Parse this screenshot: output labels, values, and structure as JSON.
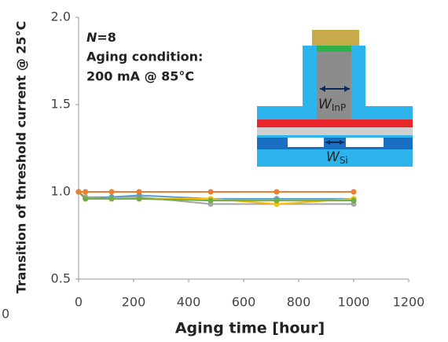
{
  "chart_data": {
    "type": "line",
    "x_label": "Aging time [hour]",
    "y_label": "Transition of threshold current @ 25°C",
    "annotations": {
      "n_prefix": "N",
      "n_value": "=8",
      "condition_title": "Aging condition:",
      "condition": "200 mA @ 85°C",
      "w_inp": {
        "main": "W",
        "sub": "InP"
      },
      "w_si": {
        "main": "W",
        "sub": "Si"
      },
      "clipped_label": "0"
    },
    "x": [
      0,
      25,
      120,
      220,
      480,
      720,
      1000
    ],
    "series": [
      {
        "color": "#a5a5a5",
        "values": [
          1.0,
          0.97,
          0.97,
          0.97,
          0.93,
          0.93,
          0.93
        ]
      },
      {
        "color": "#5b9bd5",
        "values": [
          1.0,
          0.96,
          0.97,
          0.98,
          0.96,
          0.96,
          0.96
        ]
      },
      {
        "color": "#ffc000",
        "values": [
          1.0,
          0.96,
          0.96,
          0.96,
          0.96,
          0.93,
          0.96
        ]
      },
      {
        "color": "#70ad47",
        "values": [
          1.0,
          0.96,
          0.96,
          0.96,
          0.95,
          0.95,
          0.95
        ]
      },
      {
        "color": "#ed7d31",
        "values": [
          1.0,
          1.0,
          1.0,
          1.0,
          1.0,
          1.0,
          1.0
        ]
      }
    ],
    "xlim": [
      0,
      1200
    ],
    "xticks": [
      0,
      200,
      400,
      600,
      800,
      1000,
      1200
    ],
    "ylim": [
      0.5,
      2.0
    ],
    "yticks": [
      0.5,
      {
        "value": 1,
        "label": "1.0"
      },
      1.5,
      {
        "value": 2,
        "label": "2.0"
      }
    ],
    "grid": false
  }
}
